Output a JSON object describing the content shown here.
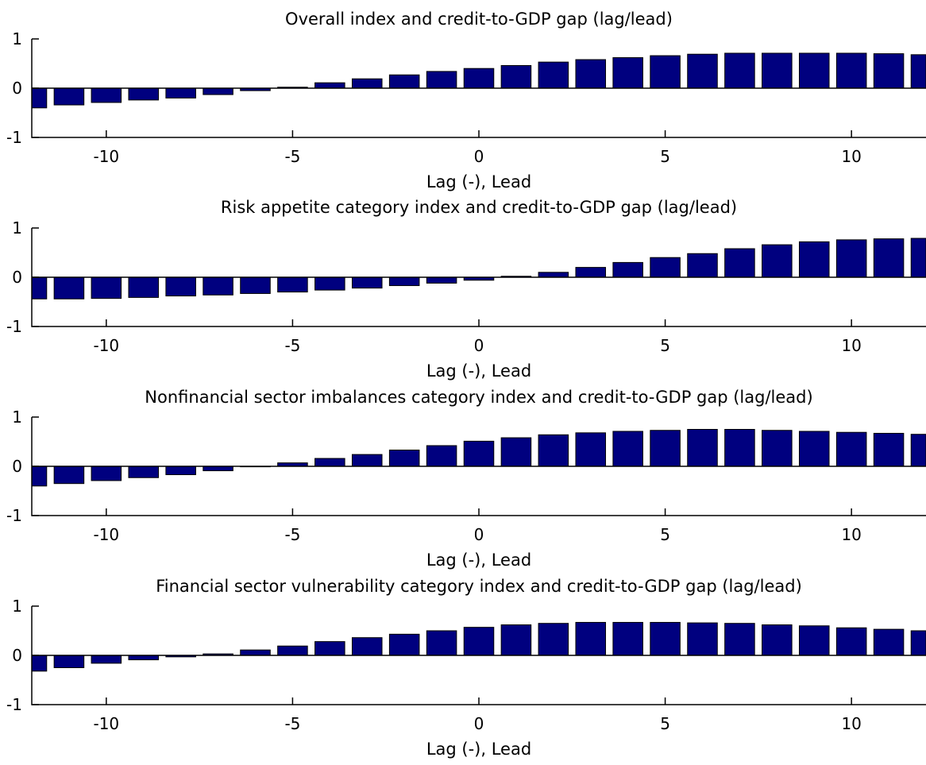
{
  "colors": {
    "bar_fill": "#00007f",
    "axis": "#000000",
    "background": "#ffffff"
  },
  "chart_data": [
    {
      "type": "bar",
      "title": "Overall index and credit-to-GDP gap (lag/lead)",
      "xlabel": "Lag (-), Lead",
      "ylabel": "",
      "xlim": [
        -12,
        12
      ],
      "ylim": [
        -1,
        1
      ],
      "xticks": [
        -10,
        -5,
        0,
        5,
        10
      ],
      "yticks": [
        -1,
        0,
        1
      ],
      "grid": false,
      "x": [
        -12,
        -11,
        -10,
        -9,
        -8,
        -7,
        -6,
        -5,
        -4,
        -3,
        -2,
        -1,
        0,
        1,
        2,
        3,
        4,
        5,
        6,
        7,
        8,
        9,
        10,
        11,
        12
      ],
      "values": [
        -0.4,
        -0.34,
        -0.29,
        -0.24,
        -0.2,
        -0.13,
        -0.05,
        0.02,
        0.11,
        0.19,
        0.27,
        0.34,
        0.4,
        0.46,
        0.53,
        0.58,
        0.62,
        0.66,
        0.69,
        0.71,
        0.71,
        0.71,
        0.71,
        0.7,
        0.68
      ]
    },
    {
      "type": "bar",
      "title": "Risk appetite category index and credit-to-GDP gap (lag/lead)",
      "xlabel": "Lag (-), Lead",
      "ylabel": "",
      "xlim": [
        -12,
        12
      ],
      "ylim": [
        -1,
        1
      ],
      "xticks": [
        -10,
        -5,
        0,
        5,
        10
      ],
      "yticks": [
        -1,
        0,
        1
      ],
      "grid": false,
      "x": [
        -12,
        -11,
        -10,
        -9,
        -8,
        -7,
        -6,
        -5,
        -4,
        -3,
        -2,
        -1,
        0,
        1,
        2,
        3,
        4,
        5,
        6,
        7,
        8,
        9,
        10,
        11,
        12
      ],
      "values": [
        -0.44,
        -0.44,
        -0.43,
        -0.41,
        -0.38,
        -0.36,
        -0.33,
        -0.3,
        -0.26,
        -0.22,
        -0.17,
        -0.12,
        -0.06,
        0.02,
        0.1,
        0.2,
        0.3,
        0.4,
        0.48,
        0.58,
        0.66,
        0.72,
        0.76,
        0.78,
        0.79
      ]
    },
    {
      "type": "bar",
      "title": "Nonfinancial sector imbalances category index and credit-to-GDP gap (lag/lead)",
      "xlabel": "Lag (-), Lead",
      "ylabel": "",
      "xlim": [
        -12,
        12
      ],
      "ylim": [
        -1,
        1
      ],
      "xticks": [
        -10,
        -5,
        0,
        5,
        10
      ],
      "yticks": [
        -1,
        0,
        1
      ],
      "grid": false,
      "x": [
        -12,
        -11,
        -10,
        -9,
        -8,
        -7,
        -6,
        -5,
        -4,
        -3,
        -2,
        -1,
        0,
        1,
        2,
        3,
        4,
        5,
        6,
        7,
        8,
        9,
        10,
        11,
        12
      ],
      "values": [
        -0.4,
        -0.35,
        -0.29,
        -0.23,
        -0.17,
        -0.09,
        -0.01,
        0.07,
        0.16,
        0.24,
        0.33,
        0.42,
        0.51,
        0.58,
        0.64,
        0.68,
        0.71,
        0.73,
        0.75,
        0.75,
        0.73,
        0.71,
        0.69,
        0.67,
        0.65
      ]
    },
    {
      "type": "bar",
      "title": "Financial sector vulnerability category index and credit-to-GDP gap (lag/lead)",
      "xlabel": "Lag (-), Lead",
      "ylabel": "",
      "xlim": [
        -12,
        12
      ],
      "ylim": [
        -1,
        1
      ],
      "xticks": [
        -10,
        -5,
        0,
        5,
        10
      ],
      "yticks": [
        -1,
        0,
        1
      ],
      "grid": false,
      "x": [
        -12,
        -11,
        -10,
        -9,
        -8,
        -7,
        -6,
        -5,
        -4,
        -3,
        -2,
        -1,
        0,
        1,
        2,
        3,
        4,
        5,
        6,
        7,
        8,
        9,
        10,
        11,
        12
      ],
      "values": [
        -0.32,
        -0.25,
        -0.16,
        -0.09,
        -0.03,
        0.03,
        0.11,
        0.19,
        0.28,
        0.36,
        0.43,
        0.5,
        0.57,
        0.62,
        0.65,
        0.67,
        0.67,
        0.67,
        0.66,
        0.65,
        0.62,
        0.6,
        0.56,
        0.53,
        0.5
      ]
    }
  ]
}
